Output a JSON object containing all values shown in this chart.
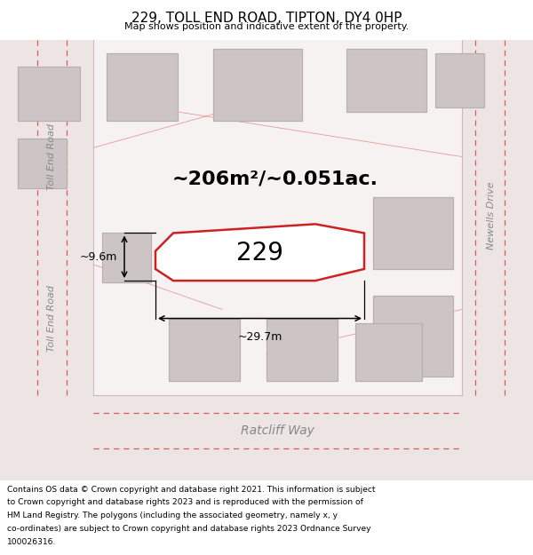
{
  "title": "229, TOLL END ROAD, TIPTON, DY4 0HP",
  "subtitle": "Map shows position and indicative extent of the property.",
  "bg_color": "#f5efef",
  "inner_bg": "#f7f2f2",
  "road_fill": "#ede4e4",
  "building_fill": "#cdc5c5",
  "building_edge": "#b8b0b0",
  "highlight_fill": "#ffffff",
  "highlight_edge": "#cc2222",
  "road_line_color": "#d44444",
  "area_text": "~206m²/~0.051ac.",
  "property_number": "229",
  "dim_width": "~29.7m",
  "dim_height": "~9.6m",
  "road_label_left1": "Toll End Road",
  "road_label_left2": "Toll End Road",
  "road_label_bottom": "Ratcliff Way",
  "road_label_right": "Newells Drive",
  "footer_lines": [
    "Contains OS data © Crown copyright and database right 2021. This information is subject",
    "to Crown copyright and database rights 2023 and is reproduced with the permission of",
    "HM Land Registry. The polygons (including the associated geometry, namely x, y",
    "co-ordinates) are subject to Crown copyright and database rights 2023 Ordnance Survey",
    "100026316."
  ]
}
